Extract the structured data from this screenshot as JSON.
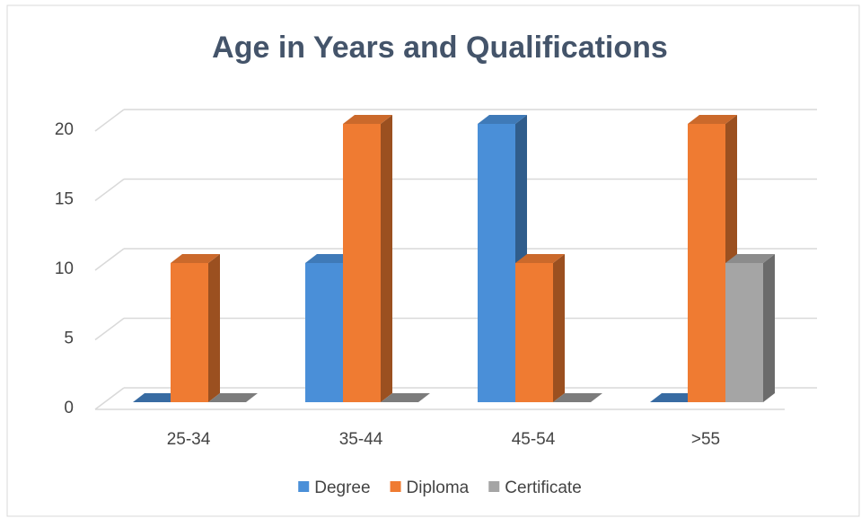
{
  "chart_data": {
    "type": "bar3d",
    "title": "Age in Years and Qualifications",
    "categories": [
      "25-34",
      "35-44",
      "45-54",
      ">55"
    ],
    "series": [
      {
        "name": "Degree",
        "color": "#4a8fd8",
        "values": [
          0,
          10,
          20,
          0
        ]
      },
      {
        "name": "Diploma",
        "color": "#ef7b32",
        "values": [
          10,
          20,
          10,
          20
        ]
      },
      {
        "name": "Certificate",
        "color": "#a5a5a5",
        "values": [
          0,
          0,
          0,
          10
        ]
      }
    ],
    "ylim": [
      0,
      20
    ],
    "yticks": [
      0,
      5,
      10,
      15,
      20
    ],
    "grid": true,
    "legend": "bottom"
  }
}
